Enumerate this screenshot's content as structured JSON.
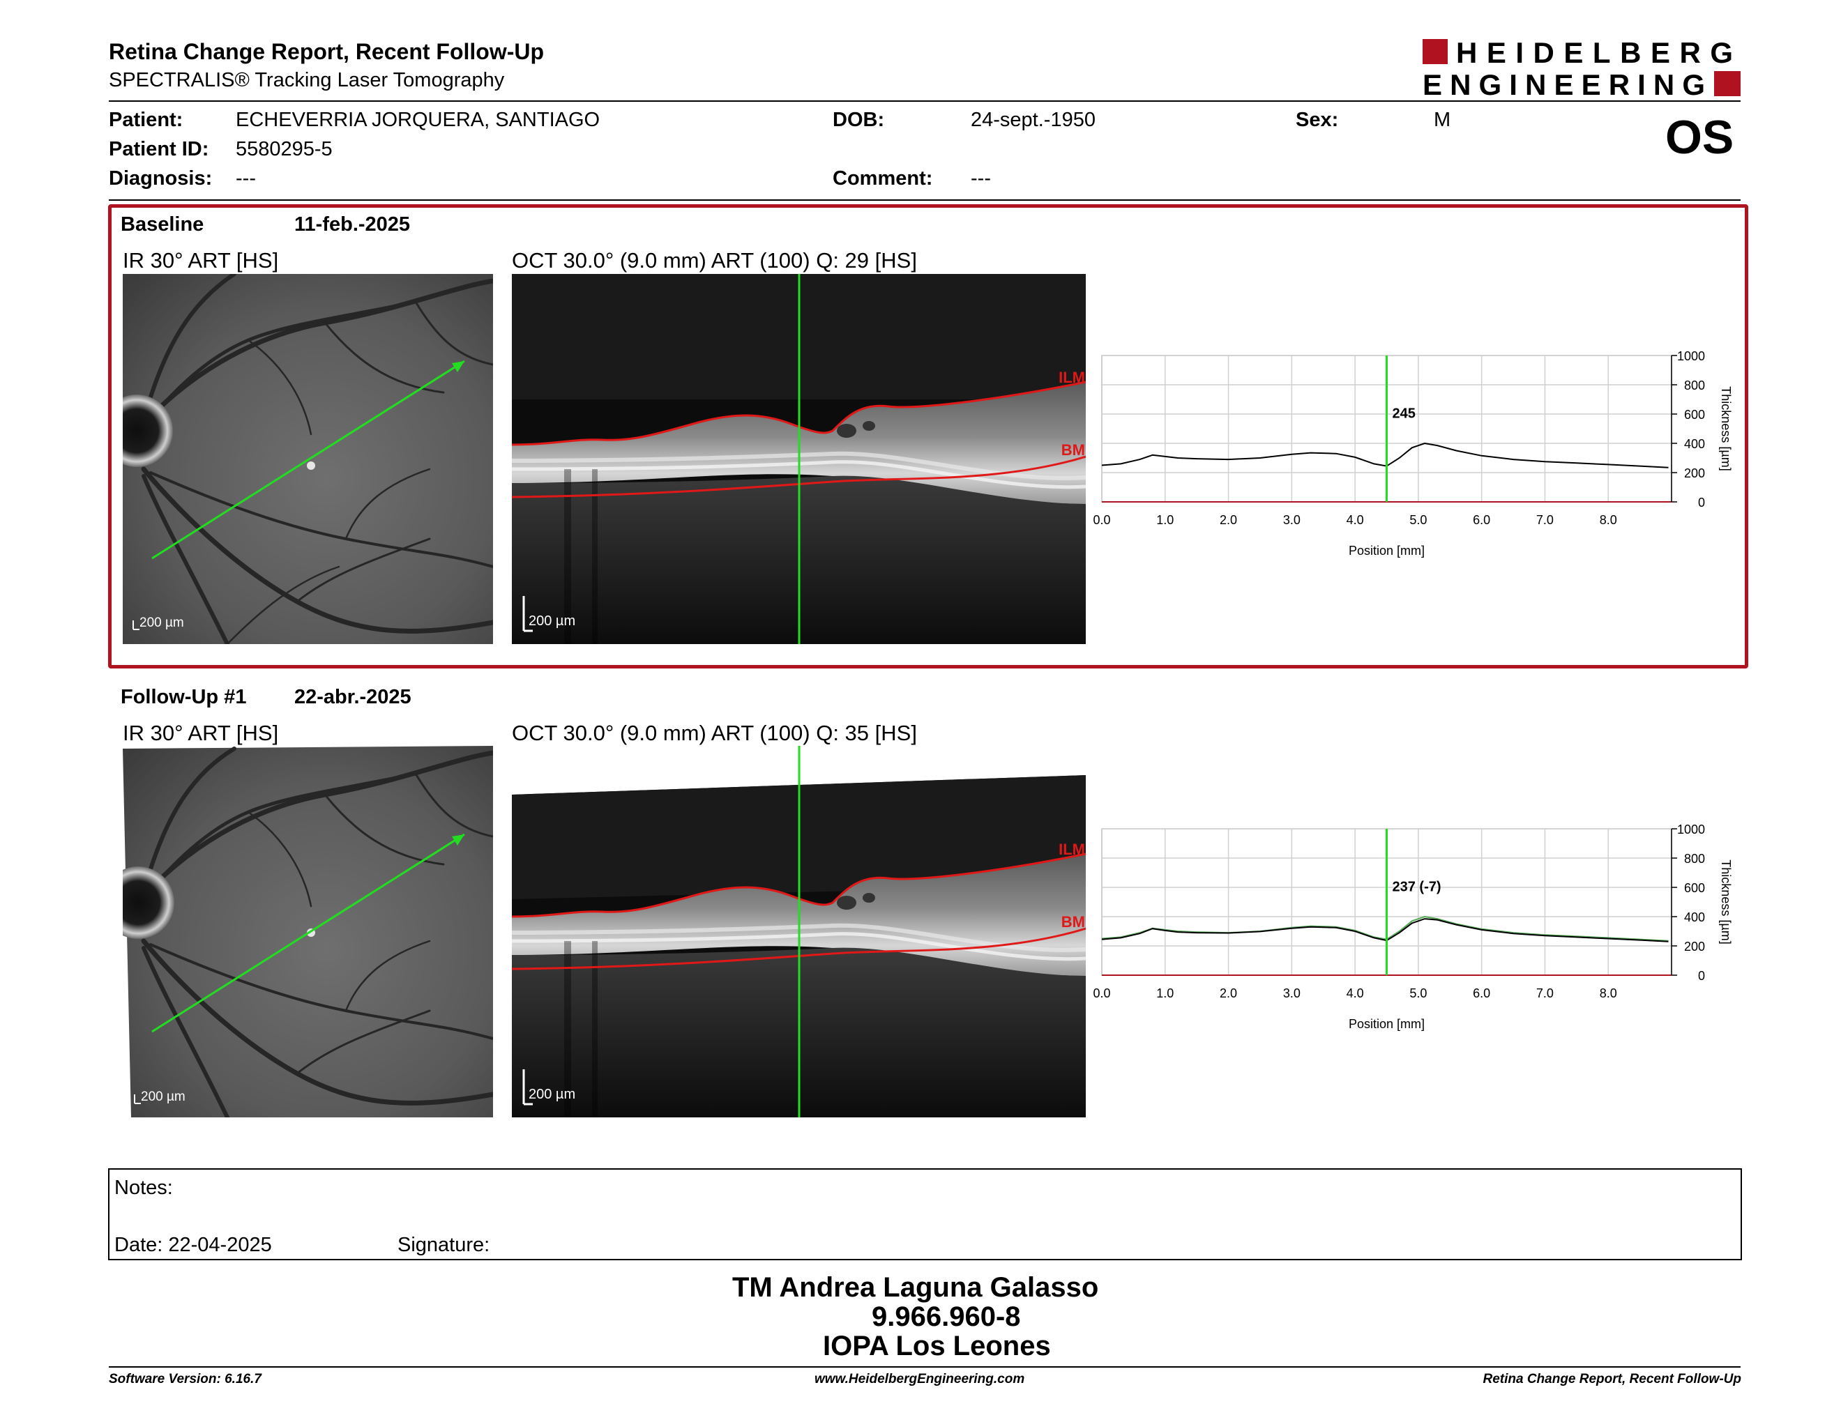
{
  "header": {
    "title": "Retina Change Report, Recent Follow-Up",
    "subtitle": "SPECTRALIS® Tracking Laser Tomography",
    "logo_line1": "HEIDELBERG",
    "logo_line2": "ENGINEERING",
    "eye": "OS"
  },
  "patient": {
    "patient_label": "Patient:",
    "patient_name": "ECHEVERRIA JORQUERA, SANTIAGO",
    "id_label": "Patient ID:",
    "id_value": "5580295-5",
    "diagnosis_label": "Diagnosis:",
    "diagnosis_value": "---",
    "dob_label": "DOB:",
    "dob_value": "24-sept.-1950",
    "comment_label": "Comment:",
    "comment_value": "---",
    "sex_label": "Sex:",
    "sex_value": "M"
  },
  "exams": [
    {
      "name": "Baseline",
      "date": "11-feb.-2025",
      "ir_title": "IR 30° ART [HS]",
      "oct_title": "OCT 30.0° (9.0 mm) ART (100) Q: 29 [HS]",
      "ir_scale": "200 µm",
      "oct_scale": "200 µm",
      "ilm": "ILM",
      "bm": "BM",
      "value_label": "245"
    },
    {
      "name": "Follow-Up #1",
      "date": "22-abr.-2025",
      "ir_title": "IR 30° ART [HS]",
      "oct_title": "OCT 30.0° (9.0 mm) ART (100) Q: 35 [HS]",
      "ir_scale": "200 µm",
      "oct_scale": "200 µm",
      "ilm": "ILM",
      "bm": "BM",
      "value_label": "237 (-7)"
    }
  ],
  "chart_common": {
    "x_ticks": [
      "0.0",
      "1.0",
      "2.0",
      "3.0",
      "4.0",
      "5.0",
      "6.0",
      "7.0",
      "8.0"
    ],
    "y_ticks": [
      "0",
      "200",
      "400",
      "600",
      "800",
      "1000"
    ],
    "xlabel": "Position [mm]",
    "ylabel": "Thickness [µm]"
  },
  "chart_data": [
    {
      "type": "line",
      "xlim": [
        0,
        9
      ],
      "ylim": [
        0,
        1000
      ],
      "marker_x": 4.5,
      "series": [
        {
          "x": [
            0.0,
            0.3,
            0.6,
            0.8,
            1.0,
            1.2,
            1.5,
            2.0,
            2.5,
            3.0,
            3.3,
            3.7,
            4.0,
            4.3,
            4.5,
            4.7,
            4.9,
            5.1,
            5.3,
            5.6,
            6.0,
            6.5,
            7.0,
            7.5,
            8.0,
            8.5,
            8.95
          ],
          "values": [
            250,
            260,
            290,
            320,
            310,
            300,
            295,
            290,
            300,
            325,
            335,
            330,
            305,
            260,
            245,
            300,
            370,
            400,
            385,
            350,
            315,
            290,
            275,
            265,
            255,
            245,
            235
          ]
        }
      ]
    },
    {
      "type": "line",
      "xlim": [
        0,
        9
      ],
      "ylim": [
        0,
        1000
      ],
      "marker_x": 4.5,
      "series": [
        {
          "x": [
            0.0,
            0.3,
            0.6,
            0.8,
            1.0,
            1.2,
            1.5,
            2.0,
            2.5,
            3.0,
            3.3,
            3.7,
            4.0,
            4.3,
            4.5,
            4.7,
            4.9,
            5.1,
            5.3,
            5.6,
            6.0,
            6.5,
            7.0,
            7.5,
            8.0,
            8.5,
            8.95
          ],
          "values": [
            245,
            255,
            285,
            318,
            305,
            295,
            290,
            288,
            298,
            320,
            330,
            325,
            300,
            255,
            237,
            290,
            355,
            385,
            378,
            345,
            310,
            285,
            270,
            260,
            250,
            240,
            230
          ]
        }
      ]
    }
  ],
  "notes": {
    "notes_label": "Notes:",
    "date_label": "Date: 22-04-2025",
    "signature_label": "Signature:"
  },
  "signature_block": {
    "line1": "TM Andrea Laguna Galasso",
    "line2": "9.966.960-8",
    "line3": "IOPA Los Leones"
  },
  "footer": {
    "left": "Software Version: 6.16.7",
    "center": "www.HeidelbergEngineering.com",
    "right": "Retina Change Report, Recent Follow-Up"
  },
  "colors": {
    "brand_red": "#b0131f",
    "scan_green": "#22dd22",
    "ilm_red": "#e01818"
  }
}
